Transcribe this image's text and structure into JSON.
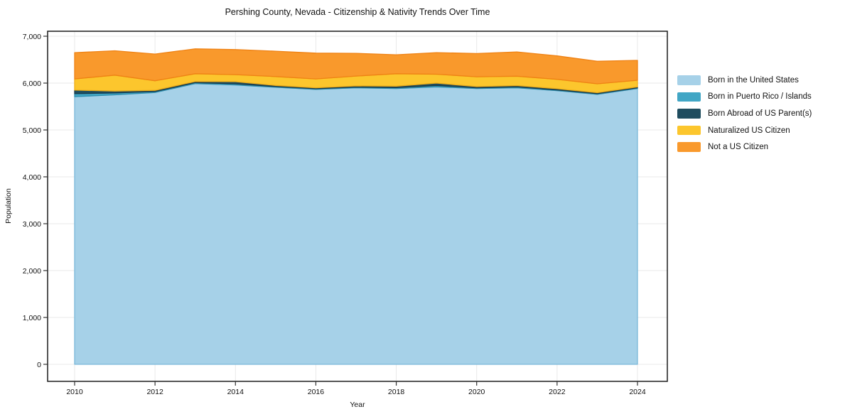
{
  "chart_data": {
    "type": "area",
    "stacked": true,
    "title": "Pershing County, Nevada - Citizenship & Nativity Trends Over Time",
    "xlabel": "Year",
    "ylabel": "Population",
    "x": [
      2010,
      2011,
      2012,
      2013,
      2014,
      2015,
      2016,
      2017,
      2018,
      2019,
      2020,
      2021,
      2022,
      2023,
      2024
    ],
    "series": [
      {
        "name": "Born in the United States",
        "color": "#a6d1e8",
        "edge": "#7ab8d9",
        "values": [
          5710,
          5750,
          5800,
          5990,
          5960,
          5910,
          5865,
          5900,
          5885,
          5920,
          5885,
          5900,
          5840,
          5760,
          5885
        ]
      },
      {
        "name": "Born in Puerto Rico / Islands",
        "color": "#41a6c5",
        "edge": "#2e8fae",
        "values": [
          65,
          40,
          20,
          20,
          25,
          15,
          15,
          15,
          20,
          30,
          15,
          20,
          15,
          15,
          15
        ]
      },
      {
        "name": "Born Abroad of US Parent(s)",
        "color": "#1f4d5f",
        "edge": "#16394a",
        "values": [
          75,
          40,
          25,
          25,
          45,
          25,
          20,
          25,
          30,
          50,
          25,
          27,
          25,
          20,
          20
        ]
      },
      {
        "name": "Naturalized US Citizen",
        "color": "#fcc62d",
        "edge": "#eead19",
        "values": [
          240,
          340,
          205,
          165,
          150,
          190,
          190,
          210,
          265,
          190,
          210,
          200,
          200,
          190,
          140
        ]
      },
      {
        "name": "Not a US Citizen",
        "color": "#f9992c",
        "edge": "#ef8214",
        "values": [
          560,
          520,
          570,
          530,
          535,
          540,
          550,
          485,
          405,
          460,
          495,
          518,
          500,
          480,
          425
        ]
      }
    ],
    "ylim": [
      0,
      7000
    ],
    "yticks": [
      {
        "value": 0,
        "label": "0"
      },
      {
        "value": 1000,
        "label": "1,000"
      },
      {
        "value": 2000,
        "label": "2,000"
      },
      {
        "value": 3000,
        "label": "3,000"
      },
      {
        "value": 4000,
        "label": "4,000"
      },
      {
        "value": 5000,
        "label": "5,000"
      },
      {
        "value": 6000,
        "label": "6,000"
      },
      {
        "value": 7000,
        "label": "7,000"
      }
    ],
    "xticks": [
      {
        "value": 2010,
        "label": "2010"
      },
      {
        "value": 2012,
        "label": "2012"
      },
      {
        "value": 2014,
        "label": "2014"
      },
      {
        "value": 2016,
        "label": "2016"
      },
      {
        "value": 2018,
        "label": "2018"
      },
      {
        "value": 2020,
        "label": "2020"
      },
      {
        "value": 2022,
        "label": "2022"
      },
      {
        "value": 2024,
        "label": "2024"
      }
    ],
    "grid": true,
    "legend_position": "right"
  },
  "colors": {
    "grid": "#e9e9e9",
    "axis_border": "#1a1a1a",
    "tick": "#333333"
  }
}
